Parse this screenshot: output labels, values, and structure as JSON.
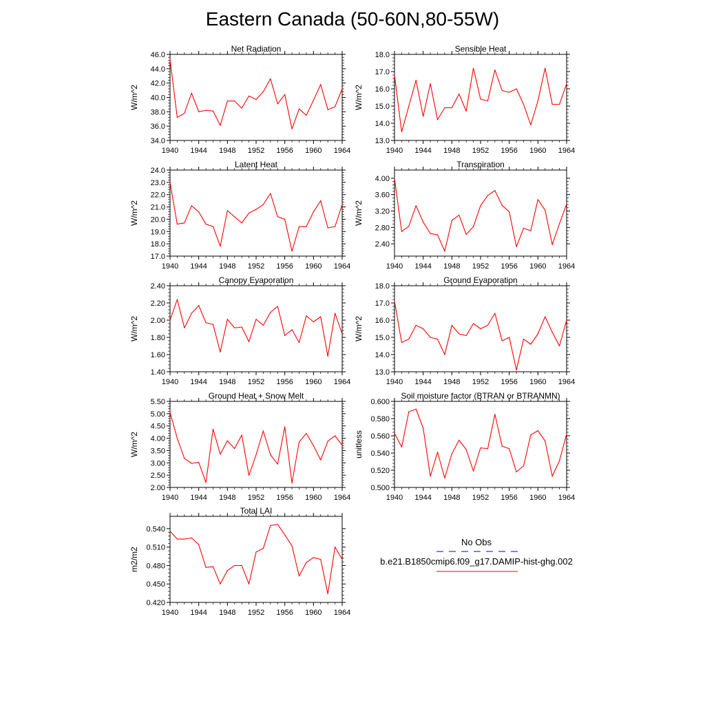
{
  "figure": {
    "title": "Eastern Canada (50-60N,80-55W)",
    "series_color": "#ff0000",
    "obs_color": "#0000cc",
    "legend": {
      "obs_label": "No Obs",
      "model_label": "b.e21.B1850cmip6.f09_g17.DAMIP-hist-ghg.002"
    }
  },
  "chart_data": [
    {
      "type": "line",
      "title": "Net Radiation",
      "ylabel": "W/m^2",
      "ylim": [
        34.0,
        46.0
      ],
      "yticks": [
        "34.0",
        "36.0",
        "38.0",
        "40.0",
        "42.0",
        "44.0",
        "46.0"
      ],
      "xlim": [
        1940,
        1964
      ],
      "xticks": [
        "1940",
        "1944",
        "1948",
        "1952",
        "1956",
        "1960",
        "1964"
      ],
      "x": [
        1940,
        1941,
        1942,
        1943,
        1944,
        1945,
        1946,
        1947,
        1948,
        1949,
        1950,
        1951,
        1952,
        1953,
        1954,
        1955,
        1956,
        1957,
        1958,
        1959,
        1960,
        1961,
        1962,
        1963,
        1964
      ],
      "series": [
        {
          "name": "b.e21.B1850cmip6.f09_g17.DAMIP-hist-ghg.002",
          "values": [
            45.3,
            37.2,
            37.8,
            40.6,
            38.0,
            38.2,
            38.1,
            36.1,
            39.5,
            39.5,
            38.5,
            40.2,
            39.7,
            40.8,
            42.6,
            39.1,
            40.4,
            35.6,
            38.4,
            37.5,
            39.6,
            41.8,
            38.3,
            38.7,
            41.2
          ]
        }
      ]
    },
    {
      "type": "line",
      "title": "Sensible Heat",
      "ylabel": "W/m^2",
      "ylim": [
        13.0,
        18.0
      ],
      "yticks": [
        "13.0",
        "14.0",
        "15.0",
        "16.0",
        "17.0",
        "18.0"
      ],
      "xlim": [
        1940,
        1964
      ],
      "xticks": [
        "1940",
        "1944",
        "1948",
        "1952",
        "1956",
        "1960",
        "1964"
      ],
      "x": [
        1940,
        1941,
        1942,
        1943,
        1944,
        1945,
        1946,
        1947,
        1948,
        1949,
        1950,
        1951,
        1952,
        1953,
        1954,
        1955,
        1956,
        1957,
        1958,
        1959,
        1960,
        1961,
        1962,
        1963,
        1964
      ],
      "series": [
        {
          "name": "b.e21.B1850cmip6.f09_g17.DAMIP-hist-ghg.002",
          "values": [
            16.8,
            13.5,
            15.0,
            16.5,
            14.4,
            16.3,
            14.2,
            14.9,
            14.9,
            15.7,
            14.7,
            17.2,
            15.4,
            15.3,
            17.1,
            15.9,
            15.8,
            16.0,
            15.1,
            13.9,
            15.3,
            17.2,
            15.1,
            15.1,
            16.3
          ]
        }
      ]
    },
    {
      "type": "line",
      "title": "Latent Heat",
      "ylabel": "W/m^2",
      "ylim": [
        17.0,
        24.0
      ],
      "yticks": [
        "17.0",
        "18.0",
        "19.0",
        "20.0",
        "21.0",
        "22.0",
        "23.0",
        "24.0"
      ],
      "xlim": [
        1940,
        1964
      ],
      "xticks": [
        "1940",
        "1944",
        "1948",
        "1952",
        "1956",
        "1960",
        "1964"
      ],
      "x": [
        1940,
        1941,
        1942,
        1943,
        1944,
        1945,
        1946,
        1947,
        1948,
        1949,
        1950,
        1951,
        1952,
        1953,
        1954,
        1955,
        1956,
        1957,
        1958,
        1959,
        1960,
        1961,
        1962,
        1963,
        1964
      ],
      "series": [
        {
          "name": "b.e21.B1850cmip6.f09_g17.DAMIP-hist-ghg.002",
          "values": [
            23.0,
            19.6,
            19.7,
            21.1,
            20.6,
            19.6,
            19.4,
            17.8,
            20.7,
            20.2,
            19.7,
            20.5,
            20.8,
            21.2,
            22.1,
            20.2,
            20.0,
            17.4,
            19.4,
            19.4,
            20.6,
            21.5,
            19.3,
            19.4,
            21.2
          ]
        }
      ]
    },
    {
      "type": "line",
      "title": "Transpiration",
      "ylabel": "W/m^2",
      "ylim": [
        2.1,
        4.2
      ],
      "yticks": [
        "2.40",
        "2.80",
        "3.20",
        "3.60",
        "4.00"
      ],
      "tickvals": [
        2.4,
        2.8,
        3.2,
        3.6,
        4.0
      ],
      "xlim": [
        1940,
        1964
      ],
      "xticks": [
        "1940",
        "1944",
        "1948",
        "1952",
        "1956",
        "1960",
        "1964"
      ],
      "x": [
        1940,
        1941,
        1942,
        1943,
        1944,
        1945,
        1946,
        1947,
        1948,
        1949,
        1950,
        1951,
        1952,
        1953,
        1954,
        1955,
        1956,
        1957,
        1958,
        1959,
        1960,
        1961,
        1962,
        1963,
        1964
      ],
      "series": [
        {
          "name": "b.e21.B1850cmip6.f09_g17.DAMIP-hist-ghg.002",
          "values": [
            4.0,
            2.7,
            2.83,
            3.33,
            2.93,
            2.65,
            2.62,
            2.22,
            2.97,
            3.1,
            2.63,
            2.82,
            3.33,
            3.58,
            3.7,
            3.34,
            3.18,
            2.33,
            2.78,
            2.72,
            3.48,
            3.22,
            2.38,
            2.89,
            3.37
          ]
        }
      ]
    },
    {
      "type": "line",
      "title": "Canopy Evaporation",
      "ylabel": "W/m^2",
      "ylim": [
        1.4,
        2.4
      ],
      "yticks": [
        "1.40",
        "1.60",
        "1.80",
        "2.00",
        "2.20",
        "2.40"
      ],
      "xlim": [
        1940,
        1964
      ],
      "xticks": [
        "1940",
        "1944",
        "1948",
        "1952",
        "1956",
        "1960",
        "1964"
      ],
      "x": [
        1940,
        1941,
        1942,
        1943,
        1944,
        1945,
        1946,
        1947,
        1948,
        1949,
        1950,
        1951,
        1952,
        1953,
        1954,
        1955,
        1956,
        1957,
        1958,
        1959,
        1960,
        1961,
        1962,
        1963,
        1964
      ],
      "series": [
        {
          "name": "b.e21.B1850cmip6.f09_g17.DAMIP-hist-ghg.002",
          "values": [
            2.0,
            2.24,
            1.91,
            2.08,
            2.17,
            1.97,
            1.95,
            1.63,
            2.01,
            1.91,
            1.92,
            1.75,
            2.01,
            1.94,
            2.09,
            2.16,
            1.82,
            1.89,
            1.74,
            2.05,
            1.98,
            2.04,
            1.58,
            2.08,
            1.84
          ]
        }
      ]
    },
    {
      "type": "line",
      "title": "Ground Evaporation",
      "ylabel": "W/m^2",
      "ylim": [
        13.0,
        18.0
      ],
      "yticks": [
        "13.0",
        "14.0",
        "15.0",
        "16.0",
        "17.0",
        "18.0"
      ],
      "xlim": [
        1940,
        1964
      ],
      "xticks": [
        "1940",
        "1944",
        "1948",
        "1952",
        "1956",
        "1960",
        "1964"
      ],
      "x": [
        1940,
        1941,
        1942,
        1943,
        1944,
        1945,
        1946,
        1947,
        1948,
        1949,
        1950,
        1951,
        1952,
        1953,
        1954,
        1955,
        1956,
        1957,
        1958,
        1959,
        1960,
        1961,
        1962,
        1963,
        1964
      ],
      "series": [
        {
          "name": "b.e21.B1850cmip6.f09_g17.DAMIP-hist-ghg.002",
          "values": [
            17.1,
            14.7,
            14.9,
            15.7,
            15.5,
            15.0,
            14.9,
            14.0,
            15.7,
            15.2,
            15.1,
            15.8,
            15.5,
            15.7,
            16.4,
            14.8,
            15.0,
            13.1,
            14.9,
            14.6,
            15.2,
            16.2,
            15.3,
            14.5,
            16.0
          ]
        }
      ]
    },
    {
      "type": "line",
      "title": "Ground Heat + Snow Melt",
      "ylabel": "W/m^2",
      "ylim": [
        2.0,
        5.5
      ],
      "yticks": [
        "2.00",
        "2.50",
        "3.00",
        "3.50",
        "4.00",
        "4.50",
        "5.00",
        "5.50"
      ],
      "xlim": [
        1940,
        1964
      ],
      "xticks": [
        "1940",
        "1944",
        "1948",
        "1952",
        "1956",
        "1960",
        "1964"
      ],
      "x": [
        1940,
        1941,
        1942,
        1943,
        1944,
        1945,
        1946,
        1947,
        1948,
        1949,
        1950,
        1951,
        1952,
        1953,
        1954,
        1955,
        1956,
        1957,
        1958,
        1959,
        1960,
        1961,
        1962,
        1963,
        1964
      ],
      "series": [
        {
          "name": "b.e21.B1850cmip6.f09_g17.DAMIP-hist-ghg.002",
          "values": [
            5.05,
            4.0,
            3.18,
            2.98,
            3.02,
            2.2,
            4.37,
            3.35,
            3.9,
            3.58,
            4.13,
            2.49,
            3.33,
            4.3,
            3.33,
            2.95,
            4.47,
            2.18,
            3.85,
            4.2,
            3.7,
            3.12,
            3.88,
            4.1,
            3.72
          ]
        }
      ]
    },
    {
      "type": "line",
      "title": "Soil moisture factor (BTRAN or BTRANMN)",
      "ylabel": "unitless",
      "ylim": [
        0.5,
        0.6
      ],
      "yticks": [
        "0.500",
        "0.520",
        "0.540",
        "0.560",
        "0.580",
        "0.600"
      ],
      "xlim": [
        1940,
        1964
      ],
      "xticks": [
        "1940",
        "1944",
        "1948",
        "1952",
        "1956",
        "1960",
        "1964"
      ],
      "x": [
        1940,
        1941,
        1942,
        1943,
        1944,
        1945,
        1946,
        1947,
        1948,
        1949,
        1950,
        1951,
        1952,
        1953,
        1954,
        1955,
        1956,
        1957,
        1958,
        1959,
        1960,
        1961,
        1962,
        1963,
        1964
      ],
      "series": [
        {
          "name": "b.e21.B1850cmip6.f09_g17.DAMIP-hist-ghg.002",
          "values": [
            0.563,
            0.547,
            0.588,
            0.591,
            0.569,
            0.513,
            0.541,
            0.511,
            0.539,
            0.555,
            0.544,
            0.519,
            0.546,
            0.545,
            0.585,
            0.548,
            0.545,
            0.518,
            0.525,
            0.561,
            0.566,
            0.554,
            0.513,
            0.531,
            0.562
          ]
        }
      ]
    },
    {
      "type": "line",
      "title": "Total LAI",
      "ylabel": "m2/m2",
      "ylim": [
        0.42,
        0.56
      ],
      "yticks": [
        "0.420",
        "0.450",
        "0.480",
        "0.510",
        "0.540"
      ],
      "tickvals": [
        0.42,
        0.45,
        0.48,
        0.51,
        0.54
      ],
      "xlim": [
        1940,
        1964
      ],
      "xticks": [
        "1940",
        "1944",
        "1948",
        "1952",
        "1956",
        "1960",
        "1964"
      ],
      "x": [
        1940,
        1941,
        1942,
        1943,
        1944,
        1945,
        1946,
        1947,
        1948,
        1949,
        1950,
        1951,
        1952,
        1953,
        1954,
        1955,
        1956,
        1957,
        1958,
        1959,
        1960,
        1961,
        1962,
        1963,
        1964
      ],
      "series": [
        {
          "name": "b.e21.B1850cmip6.f09_g17.DAMIP-hist-ghg.002",
          "values": [
            0.536,
            0.523,
            0.523,
            0.525,
            0.514,
            0.477,
            0.478,
            0.45,
            0.472,
            0.48,
            0.48,
            0.45,
            0.502,
            0.508,
            0.545,
            0.547,
            0.53,
            0.512,
            0.463,
            0.485,
            0.493,
            0.49,
            0.434,
            0.51,
            0.49
          ]
        }
      ]
    }
  ]
}
